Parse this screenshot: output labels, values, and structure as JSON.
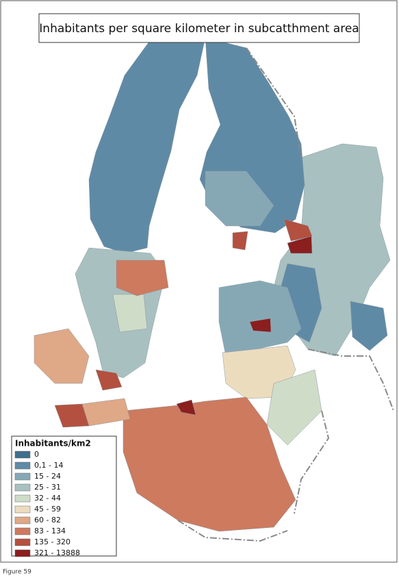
{
  "title": "Inhabitants per square kilometer in subcatthment area",
  "legend": {
    "title": "Inhabitants/km2",
    "items": [
      {
        "label": "0",
        "color": "#3f6f8c"
      },
      {
        "label": "0,1 - 14",
        "color": "#5f8aa6"
      },
      {
        "label": "15 - 24",
        "color": "#86a8b5"
      },
      {
        "label": "25 - 31",
        "color": "#a9c0c0"
      },
      {
        "label": "32 - 44",
        "color": "#cfdcc8"
      },
      {
        "label": "45 - 59",
        "color": "#ecdcbe"
      },
      {
        "label": "60 - 82",
        "color": "#dfa887"
      },
      {
        "label": "83 - 134",
        "color": "#cd7a5f"
      },
      {
        "label": "135 - 320",
        "color": "#b4503f"
      },
      {
        "label": "321 - 13888",
        "color": "#8b1e1e"
      }
    ]
  },
  "caption": "Figure 59"
}
